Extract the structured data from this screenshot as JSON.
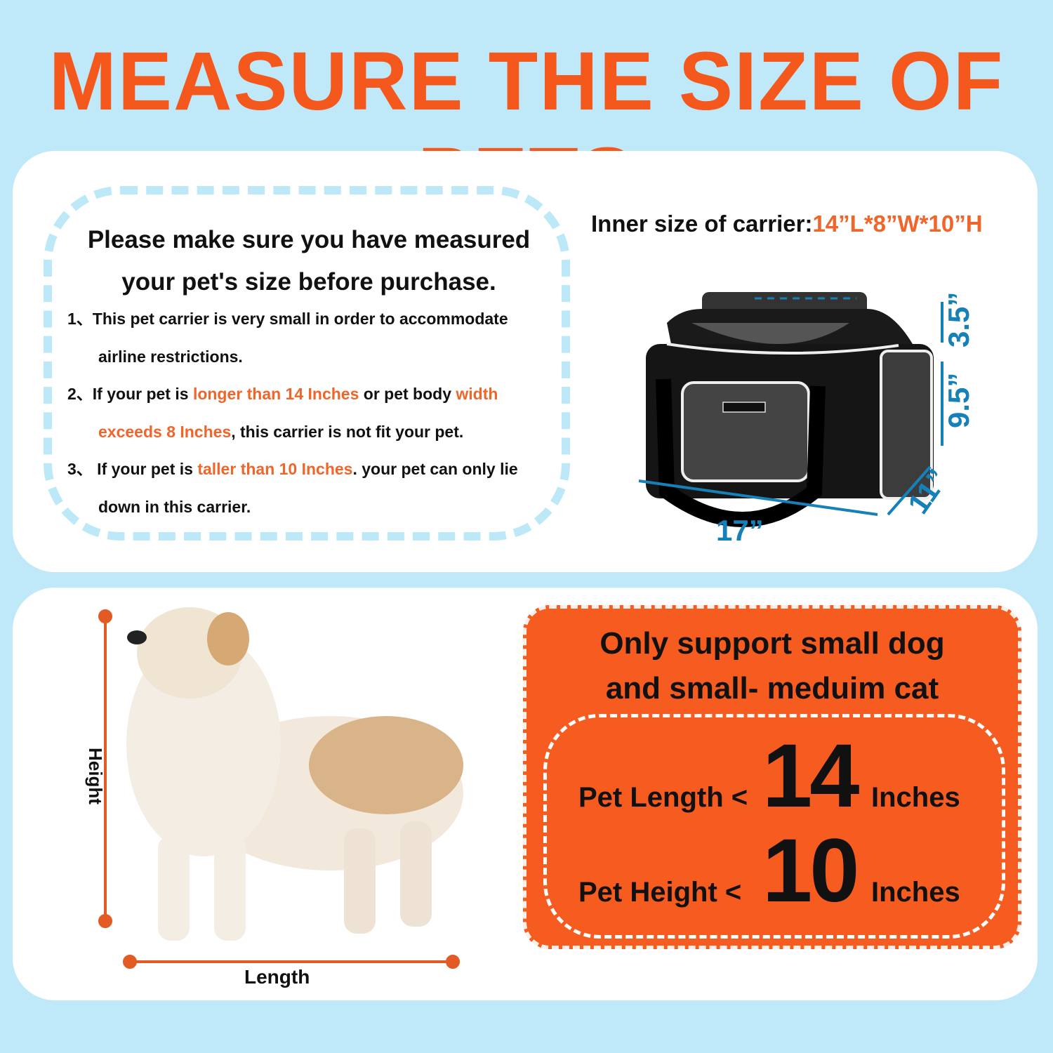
{
  "title": "MEASURE THE SIZE OF PETS",
  "notice": {
    "lead_line1": "Please make sure you have measured",
    "lead_line2": "your pet's size before purchase.",
    "rules": [
      {
        "num": "1、",
        "parts": [
          "This pet carrier is very small in order  to accommodate"
        ],
        "cont": "airline restrictions."
      },
      {
        "num": "2、",
        "a": "If your pet is ",
        "b": "longer than 14 Inches",
        "c": " or pet body ",
        "d": "width",
        "e": "exceeds 8 Inches",
        "f": ", this carrier is not fit your pet."
      },
      {
        "num": "3、",
        "a": " If your pet is ",
        "b": "taller than 10 Inches",
        "c": ". your pet can only lie",
        "cont": "down in this carrier."
      }
    ]
  },
  "carrier": {
    "inner_label": "Inner size of carrier:",
    "inner_value": "14”L*8”W*10”H",
    "dims": {
      "length": "17”",
      "width": "11”",
      "height": "9.5”",
      "top": "3.5”"
    }
  },
  "pet": {
    "height_label": "Height",
    "length_label": "Length"
  },
  "support": {
    "line1": "Only support small dog",
    "line2": "and small- meduim cat",
    "length_label": "Pet Length <",
    "length_value": "14",
    "length_unit": "Inches",
    "height_label": "Pet Height <",
    "height_value": "10",
    "height_unit": "Inches"
  },
  "colors": {
    "accent": "#f5581c",
    "background": "#bfe9f8",
    "dimension": "#1680b8"
  }
}
